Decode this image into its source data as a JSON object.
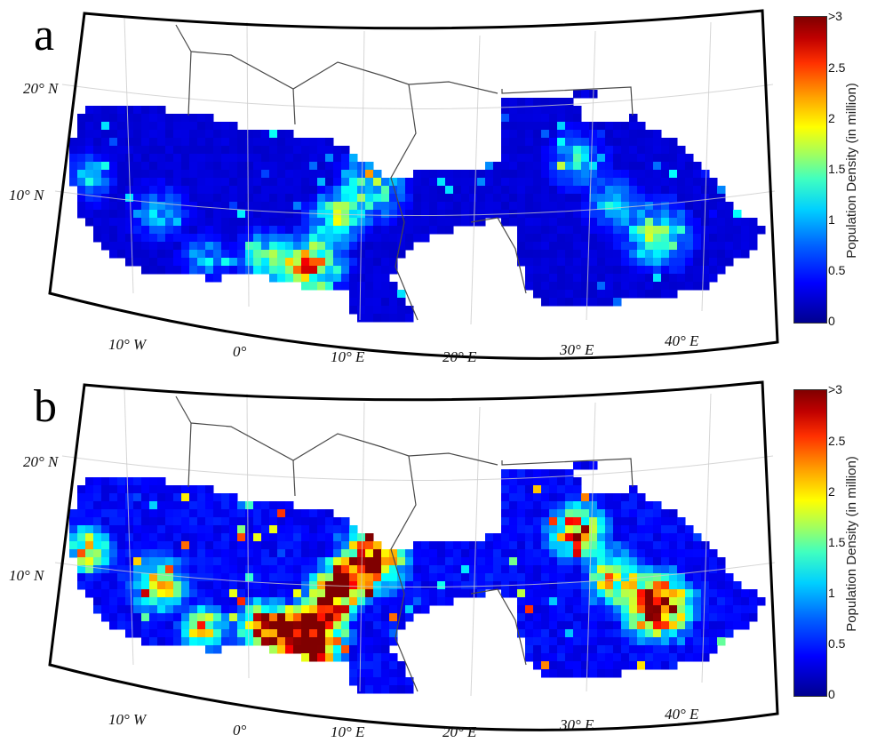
{
  "panels": [
    {
      "id": "a",
      "letter": "a",
      "level": "low"
    },
    {
      "id": "b",
      "letter": "b",
      "level": "high"
    }
  ],
  "lat_labels": [
    "20° N",
    "10° N"
  ],
  "lon_labels": [
    "10° W",
    "0°",
    "10° E",
    "20° E",
    "30° E",
    "40° E"
  ],
  "colorbar": {
    "label": "Population Density (in million)",
    "ticks": [
      "0",
      "0.5",
      "1",
      "1.5",
      "2",
      "2.5",
      ">3"
    ],
    "colormap": "jet",
    "colors": [
      "#00008f",
      "#0000ff",
      "#00d0ff",
      "#ffff00",
      "#ff3000",
      "#800000"
    ]
  },
  "colors": {
    "sea": "#ffffff",
    "border": "#4a4a4a",
    "frame": "#000000",
    "grid": "#cccccc"
  }
}
